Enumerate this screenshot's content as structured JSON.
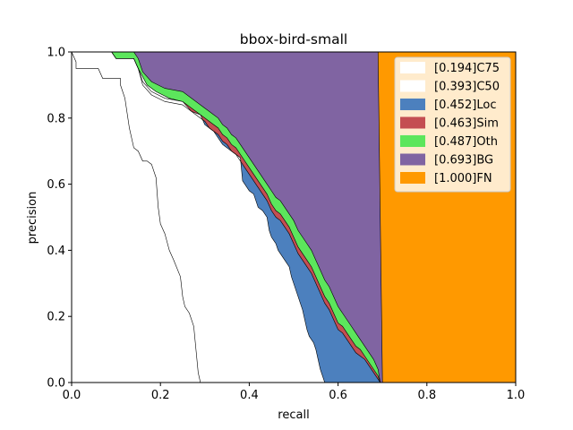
{
  "chart_data": {
    "type": "area",
    "title": "bbox-bird-small",
    "xlabel": "recall",
    "ylabel": "precision",
    "xlim": [
      0,
      1
    ],
    "ylim": [
      0,
      1
    ],
    "xticks": [
      "0.0",
      "0.2",
      "0.4",
      "0.6",
      "0.8",
      "1.0"
    ],
    "yticks": [
      "0.0",
      "0.2",
      "0.4",
      "0.6",
      "0.8",
      "1.0"
    ],
    "legend_position": "upper-right",
    "series": [
      {
        "name": "[0.194]C75",
        "color": "#ffffff",
        "points": [
          [
            0.0,
            1.0
          ],
          [
            0.01,
            0.97
          ],
          [
            0.01,
            0.95
          ],
          [
            0.06,
            0.95
          ],
          [
            0.07,
            0.92
          ],
          [
            0.11,
            0.92
          ],
          [
            0.11,
            0.9
          ],
          [
            0.12,
            0.86
          ],
          [
            0.13,
            0.77
          ],
          [
            0.14,
            0.71
          ],
          [
            0.15,
            0.7
          ],
          [
            0.16,
            0.67
          ],
          [
            0.17,
            0.67
          ],
          [
            0.18,
            0.66
          ],
          [
            0.19,
            0.62
          ],
          [
            0.195,
            0.53
          ],
          [
            0.2,
            0.48
          ],
          [
            0.21,
            0.45
          ],
          [
            0.22,
            0.4
          ],
          [
            0.23,
            0.37
          ],
          [
            0.245,
            0.32
          ],
          [
            0.25,
            0.26
          ],
          [
            0.255,
            0.23
          ],
          [
            0.265,
            0.21
          ],
          [
            0.275,
            0.17
          ],
          [
            0.28,
            0.1
          ],
          [
            0.285,
            0.03
          ],
          [
            0.29,
            0.0
          ]
        ]
      },
      {
        "name": "[0.393]C50",
        "color": "#ffffff",
        "points": [
          [
            0.0,
            1.0
          ],
          [
            0.09,
            1.0
          ],
          [
            0.1,
            0.98
          ],
          [
            0.14,
            0.98
          ],
          [
            0.15,
            0.95
          ],
          [
            0.17,
            0.9
          ],
          [
            0.19,
            0.88
          ],
          [
            0.22,
            0.86
          ],
          [
            0.25,
            0.85
          ],
          [
            0.27,
            0.82
          ],
          [
            0.29,
            0.81
          ],
          [
            0.3,
            0.78
          ],
          [
            0.31,
            0.77
          ],
          [
            0.32,
            0.76
          ],
          [
            0.33,
            0.74
          ],
          [
            0.34,
            0.72
          ],
          [
            0.35,
            0.71
          ],
          [
            0.36,
            0.7
          ],
          [
            0.37,
            0.69
          ],
          [
            0.38,
            0.68
          ],
          [
            0.385,
            0.61
          ],
          [
            0.39,
            0.6
          ],
          [
            0.4,
            0.58
          ],
          [
            0.41,
            0.57
          ],
          [
            0.415,
            0.55
          ],
          [
            0.42,
            0.53
          ],
          [
            0.43,
            0.52
          ],
          [
            0.44,
            0.5
          ],
          [
            0.445,
            0.46
          ],
          [
            0.45,
            0.44
          ],
          [
            0.455,
            0.43
          ],
          [
            0.46,
            0.42
          ],
          [
            0.465,
            0.4
          ],
          [
            0.47,
            0.39
          ],
          [
            0.48,
            0.37
          ],
          [
            0.49,
            0.35
          ],
          [
            0.495,
            0.32
          ],
          [
            0.5,
            0.3
          ],
          [
            0.505,
            0.28
          ],
          [
            0.51,
            0.26
          ],
          [
            0.515,
            0.24
          ],
          [
            0.52,
            0.22
          ],
          [
            0.525,
            0.19
          ],
          [
            0.53,
            0.16
          ],
          [
            0.535,
            0.14
          ],
          [
            0.545,
            0.12
          ],
          [
            0.55,
            0.1
          ],
          [
            0.555,
            0.07
          ],
          [
            0.56,
            0.04
          ],
          [
            0.565,
            0.02
          ],
          [
            0.57,
            0.0
          ]
        ]
      },
      {
        "name": "[0.452]Loc",
        "color": "#4c80be",
        "points": [
          [
            0.0,
            1.0
          ],
          [
            0.09,
            1.0
          ],
          [
            0.1,
            0.98
          ],
          [
            0.14,
            0.98
          ],
          [
            0.15,
            0.95
          ],
          [
            0.16,
            0.9
          ],
          [
            0.18,
            0.87
          ],
          [
            0.21,
            0.85
          ],
          [
            0.25,
            0.84
          ],
          [
            0.28,
            0.81
          ],
          [
            0.3,
            0.79
          ],
          [
            0.31,
            0.77
          ],
          [
            0.33,
            0.75
          ],
          [
            0.34,
            0.73
          ],
          [
            0.35,
            0.72
          ],
          [
            0.36,
            0.7
          ],
          [
            0.37,
            0.69
          ],
          [
            0.38,
            0.67
          ],
          [
            0.39,
            0.65
          ],
          [
            0.4,
            0.63
          ],
          [
            0.41,
            0.61
          ],
          [
            0.42,
            0.59
          ],
          [
            0.43,
            0.57
          ],
          [
            0.44,
            0.55
          ],
          [
            0.45,
            0.52
          ],
          [
            0.46,
            0.5
          ],
          [
            0.47,
            0.49
          ],
          [
            0.48,
            0.47
          ],
          [
            0.49,
            0.45
          ],
          [
            0.5,
            0.42
          ],
          [
            0.51,
            0.39
          ],
          [
            0.52,
            0.37
          ],
          [
            0.53,
            0.35
          ],
          [
            0.54,
            0.33
          ],
          [
            0.55,
            0.3
          ],
          [
            0.56,
            0.27
          ],
          [
            0.57,
            0.24
          ],
          [
            0.58,
            0.22
          ],
          [
            0.59,
            0.19
          ],
          [
            0.6,
            0.16
          ],
          [
            0.61,
            0.15
          ],
          [
            0.62,
            0.13
          ],
          [
            0.63,
            0.11
          ],
          [
            0.64,
            0.09
          ],
          [
            0.65,
            0.08
          ],
          [
            0.66,
            0.07
          ],
          [
            0.67,
            0.05
          ],
          [
            0.68,
            0.03
          ],
          [
            0.69,
            0.01
          ],
          [
            0.695,
            0.0
          ]
        ]
      },
      {
        "name": "[0.463]Sim",
        "color": "#c44e52",
        "points": [
          [
            0.0,
            1.0
          ],
          [
            0.09,
            1.0
          ],
          [
            0.1,
            0.98
          ],
          [
            0.14,
            0.98
          ],
          [
            0.15,
            0.95
          ],
          [
            0.16,
            0.91
          ],
          [
            0.18,
            0.88
          ],
          [
            0.21,
            0.86
          ],
          [
            0.25,
            0.85
          ],
          [
            0.28,
            0.82
          ],
          [
            0.3,
            0.8
          ],
          [
            0.31,
            0.79
          ],
          [
            0.33,
            0.77
          ],
          [
            0.34,
            0.75
          ],
          [
            0.35,
            0.74
          ],
          [
            0.36,
            0.72
          ],
          [
            0.37,
            0.71
          ],
          [
            0.38,
            0.69
          ],
          [
            0.39,
            0.67
          ],
          [
            0.4,
            0.65
          ],
          [
            0.41,
            0.63
          ],
          [
            0.42,
            0.61
          ],
          [
            0.43,
            0.59
          ],
          [
            0.44,
            0.57
          ],
          [
            0.45,
            0.54
          ],
          [
            0.46,
            0.52
          ],
          [
            0.47,
            0.51
          ],
          [
            0.48,
            0.49
          ],
          [
            0.49,
            0.47
          ],
          [
            0.5,
            0.44
          ],
          [
            0.51,
            0.41
          ],
          [
            0.52,
            0.39
          ],
          [
            0.53,
            0.37
          ],
          [
            0.54,
            0.35
          ],
          [
            0.55,
            0.32
          ],
          [
            0.56,
            0.29
          ],
          [
            0.57,
            0.26
          ],
          [
            0.58,
            0.24
          ],
          [
            0.59,
            0.21
          ],
          [
            0.6,
            0.18
          ],
          [
            0.61,
            0.17
          ],
          [
            0.62,
            0.15
          ],
          [
            0.63,
            0.13
          ],
          [
            0.64,
            0.11
          ],
          [
            0.65,
            0.1
          ],
          [
            0.66,
            0.08
          ],
          [
            0.67,
            0.06
          ],
          [
            0.68,
            0.04
          ],
          [
            0.69,
            0.02
          ],
          [
            0.695,
            0.0
          ]
        ]
      },
      {
        "name": "[0.487]Oth",
        "color": "#5ce65c",
        "points": [
          [
            0.0,
            1.0
          ],
          [
            0.14,
            1.0
          ],
          [
            0.15,
            0.98
          ],
          [
            0.16,
            0.94
          ],
          [
            0.18,
            0.91
          ],
          [
            0.21,
            0.89
          ],
          [
            0.25,
            0.88
          ],
          [
            0.28,
            0.85
          ],
          [
            0.3,
            0.83
          ],
          [
            0.31,
            0.82
          ],
          [
            0.33,
            0.8
          ],
          [
            0.34,
            0.78
          ],
          [
            0.35,
            0.77
          ],
          [
            0.36,
            0.75
          ],
          [
            0.37,
            0.74
          ],
          [
            0.38,
            0.72
          ],
          [
            0.39,
            0.7
          ],
          [
            0.4,
            0.68
          ],
          [
            0.41,
            0.66
          ],
          [
            0.42,
            0.64
          ],
          [
            0.43,
            0.62
          ],
          [
            0.44,
            0.6
          ],
          [
            0.45,
            0.58
          ],
          [
            0.46,
            0.56
          ],
          [
            0.47,
            0.55
          ],
          [
            0.48,
            0.53
          ],
          [
            0.49,
            0.51
          ],
          [
            0.5,
            0.49
          ],
          [
            0.51,
            0.46
          ],
          [
            0.52,
            0.44
          ],
          [
            0.53,
            0.42
          ],
          [
            0.54,
            0.4
          ],
          [
            0.55,
            0.37
          ],
          [
            0.56,
            0.34
          ],
          [
            0.57,
            0.31
          ],
          [
            0.58,
            0.29
          ],
          [
            0.59,
            0.26
          ],
          [
            0.6,
            0.23
          ],
          [
            0.61,
            0.21
          ],
          [
            0.62,
            0.19
          ],
          [
            0.63,
            0.17
          ],
          [
            0.64,
            0.15
          ],
          [
            0.65,
            0.13
          ],
          [
            0.66,
            0.11
          ],
          [
            0.67,
            0.09
          ],
          [
            0.68,
            0.07
          ],
          [
            0.69,
            0.04
          ],
          [
            0.695,
            0.0
          ]
        ]
      },
      {
        "name": "[0.693]BG",
        "color": "#8064a2",
        "points": [
          [
            0.0,
            1.0
          ],
          [
            0.69,
            1.0
          ],
          [
            0.7,
            0.0
          ]
        ]
      },
      {
        "name": "[1.000]FN",
        "color": "#ff9900",
        "points": [
          [
            0.0,
            1.0
          ],
          [
            1.0,
            1.0
          ],
          [
            1.0,
            0.0
          ]
        ]
      }
    ]
  }
}
